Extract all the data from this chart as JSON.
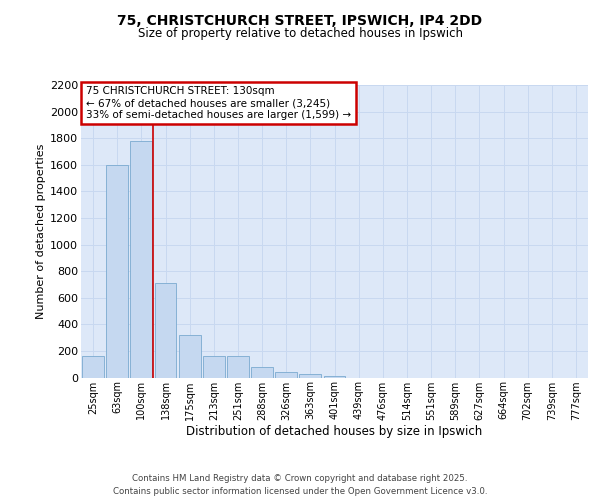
{
  "title_line1": "75, CHRISTCHURCH STREET, IPSWICH, IP4 2DD",
  "title_line2": "Size of property relative to detached houses in Ipswich",
  "xlabel": "Distribution of detached houses by size in Ipswich",
  "ylabel": "Number of detached properties",
  "bar_labels": [
    "25sqm",
    "63sqm",
    "100sqm",
    "138sqm",
    "175sqm",
    "213sqm",
    "251sqm",
    "288sqm",
    "326sqm",
    "363sqm",
    "401sqm",
    "439sqm",
    "476sqm",
    "514sqm",
    "551sqm",
    "589sqm",
    "627sqm",
    "664sqm",
    "702sqm",
    "739sqm",
    "777sqm"
  ],
  "bar_values": [
    165,
    1600,
    1780,
    710,
    320,
    160,
    160,
    80,
    40,
    25,
    15,
    0,
    0,
    0,
    0,
    0,
    0,
    0,
    0,
    0,
    0
  ],
  "bar_color": "#c5d8f0",
  "bar_edge_color": "#7aaad0",
  "vline_color": "#cc0000",
  "annotation_text": "75 CHRISTCHURCH STREET: 130sqm\n← 67% of detached houses are smaller (3,245)\n33% of semi-detached houses are larger (1,599) →",
  "annotation_box_edgecolor": "#cc0000",
  "ylim_max": 2200,
  "yticks": [
    0,
    200,
    400,
    600,
    800,
    1000,
    1200,
    1400,
    1600,
    1800,
    2000,
    2200
  ],
  "grid_color": "#c8d8f0",
  "background_color": "#dde8f8",
  "footer_text": "Contains HM Land Registry data © Crown copyright and database right 2025.\nContains public sector information licensed under the Open Government Licence v3.0."
}
